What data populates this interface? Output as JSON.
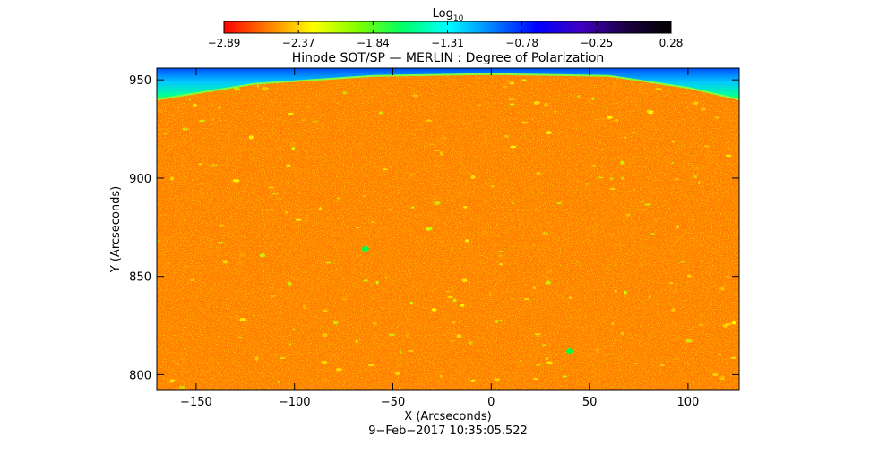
{
  "chart_data": {
    "type": "heatmap",
    "title": "Hinode SOT/SP — MERLIN : Degree of Polarization",
    "colorbar": {
      "label_main": "Log",
      "label_sub": "10",
      "ticks": [
        "−2.89",
        "−2.37",
        "−1.84",
        "−1.31",
        "−0.78",
        "−0.25",
        "0.28"
      ],
      "range": [
        -2.89,
        0.28
      ],
      "colormap": [
        "#ff0000",
        "#ff8000",
        "#ffff00",
        "#80ff00",
        "#00ff66",
        "#00ffff",
        "#0080ff",
        "#0000ff",
        "#4000c0",
        "#1a0040",
        "#000000"
      ]
    },
    "xlabel": "X (Arcseconds)",
    "ylabel": "Y (Arcseconds)",
    "xlim": [
      -170,
      126
    ],
    "ylim": [
      792,
      956
    ],
    "xticks": [
      -150,
      -100,
      -50,
      0,
      50,
      100
    ],
    "yticks": [
      800,
      850,
      900,
      950
    ],
    "xtick_labels": [
      "−150",
      "−100",
      "−50",
      "0",
      "50",
      "100"
    ],
    "ytick_labels": [
      "800",
      "850",
      "900",
      "950"
    ],
    "limb_edge": {
      "x": [
        -170,
        -120,
        -60,
        0,
        60,
        100,
        126
      ],
      "y": [
        940,
        948,
        952,
        953,
        952,
        946,
        940
      ]
    },
    "field_level": -2.6,
    "off_disk_level": -1.2,
    "timestamp": "9−Feb−2017 10:35:05.522"
  }
}
